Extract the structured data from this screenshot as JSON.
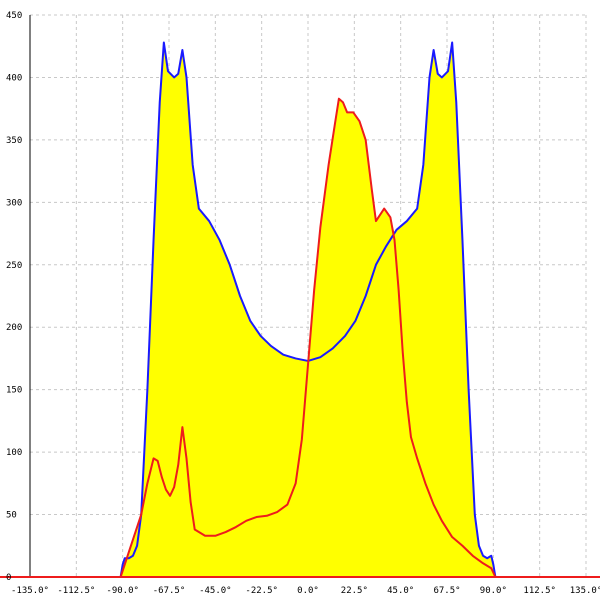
{
  "chart_data": {
    "type": "area",
    "title": "",
    "xlabel": "",
    "ylabel": "",
    "xlim": [
      -135,
      135
    ],
    "ylim": [
      0,
      450
    ],
    "grid": true,
    "x_ticks": [
      -135,
      -112.5,
      -90,
      -67.5,
      -45,
      -22.5,
      0,
      22.5,
      45,
      67.5,
      90,
      112.5,
      135
    ],
    "x_tick_labels": [
      "-135.0°",
      "-112.5°",
      "-90.0°",
      "-67.5°",
      "-45.0°",
      "-22.5°",
      "0.0°",
      "22.5°",
      "45.0°",
      "67.5°",
      "90.0°",
      "112.5°",
      "135.0°"
    ],
    "y_ticks": [
      0,
      50,
      100,
      150,
      200,
      250,
      300,
      350,
      400,
      450
    ],
    "y_tick_labels": [
      "0",
      "50",
      "100",
      "150",
      "200",
      "250",
      "300",
      "350",
      "400",
      "450"
    ],
    "fill_color": "#ffff00",
    "series": [
      {
        "color": "#1a1aff",
        "points": [
          [
            -91,
            0
          ],
          [
            -90,
            10
          ],
          [
            -89,
            15
          ],
          [
            -87,
            15
          ],
          [
            -85,
            17
          ],
          [
            -83,
            25
          ],
          [
            -81,
            50
          ],
          [
            -78,
            150
          ],
          [
            -75,
            270
          ],
          [
            -72,
            380
          ],
          [
            -70,
            428
          ],
          [
            -68,
            405
          ],
          [
            -65,
            400
          ],
          [
            -63,
            403
          ],
          [
            -61,
            422
          ],
          [
            -59,
            400
          ],
          [
            -56,
            330
          ],
          [
            -53,
            295
          ],
          [
            -48,
            285
          ],
          [
            -43,
            270
          ],
          [
            -38,
            250
          ],
          [
            -33,
            225
          ],
          [
            -28,
            205
          ],
          [
            -23,
            193
          ],
          [
            -18,
            185
          ],
          [
            -12,
            178
          ],
          [
            -6,
            175
          ],
          [
            0,
            173
          ],
          [
            6,
            176
          ],
          [
            12,
            183
          ],
          [
            18,
            193
          ],
          [
            23,
            205
          ],
          [
            28,
            225
          ],
          [
            33,
            250
          ],
          [
            38,
            265
          ],
          [
            43,
            278
          ],
          [
            48,
            285
          ],
          [
            53,
            295
          ],
          [
            56,
            330
          ],
          [
            59,
            400
          ],
          [
            61,
            422
          ],
          [
            63,
            403
          ],
          [
            65,
            400
          ],
          [
            68,
            405
          ],
          [
            70,
            428
          ],
          [
            72,
            380
          ],
          [
            75,
            270
          ],
          [
            78,
            150
          ],
          [
            81,
            50
          ],
          [
            83,
            25
          ],
          [
            85,
            17
          ],
          [
            87,
            15
          ],
          [
            89,
            17
          ],
          [
            90,
            10
          ],
          [
            91,
            0
          ]
        ]
      },
      {
        "color": "#ee1c1c",
        "points": [
          [
            -91,
            0
          ],
          [
            -88,
            15
          ],
          [
            -85,
            30
          ],
          [
            -81,
            50
          ],
          [
            -78,
            75
          ],
          [
            -75,
            95
          ],
          [
            -73,
            93
          ],
          [
            -71,
            80
          ],
          [
            -69,
            70
          ],
          [
            -67,
            65
          ],
          [
            -65,
            72
          ],
          [
            -63,
            90
          ],
          [
            -61,
            120
          ],
          [
            -59,
            95
          ],
          [
            -57,
            60
          ],
          [
            -55,
            38
          ],
          [
            -50,
            33
          ],
          [
            -45,
            33
          ],
          [
            -40,
            36
          ],
          [
            -35,
            40
          ],
          [
            -30,
            45
          ],
          [
            -25,
            48
          ],
          [
            -20,
            49
          ],
          [
            -15,
            52
          ],
          [
            -10,
            58
          ],
          [
            -6,
            75
          ],
          [
            -3,
            110
          ],
          [
            0,
            170
          ],
          [
            3,
            230
          ],
          [
            6,
            280
          ],
          [
            10,
            330
          ],
          [
            13,
            362
          ],
          [
            15,
            383
          ],
          [
            17,
            380
          ],
          [
            19,
            372
          ],
          [
            22,
            372
          ],
          [
            25,
            365
          ],
          [
            28,
            350
          ],
          [
            31,
            310
          ],
          [
            33,
            285
          ],
          [
            35,
            290
          ],
          [
            37,
            295
          ],
          [
            40,
            288
          ],
          [
            42,
            270
          ],
          [
            44,
            230
          ],
          [
            46,
            180
          ],
          [
            48,
            140
          ],
          [
            50,
            112
          ],
          [
            53,
            95
          ],
          [
            57,
            75
          ],
          [
            61,
            58
          ],
          [
            65,
            45
          ],
          [
            70,
            32
          ],
          [
            75,
            25
          ],
          [
            80,
            17
          ],
          [
            85,
            11
          ],
          [
            89,
            7
          ],
          [
            91,
            0
          ]
        ]
      }
    ]
  }
}
